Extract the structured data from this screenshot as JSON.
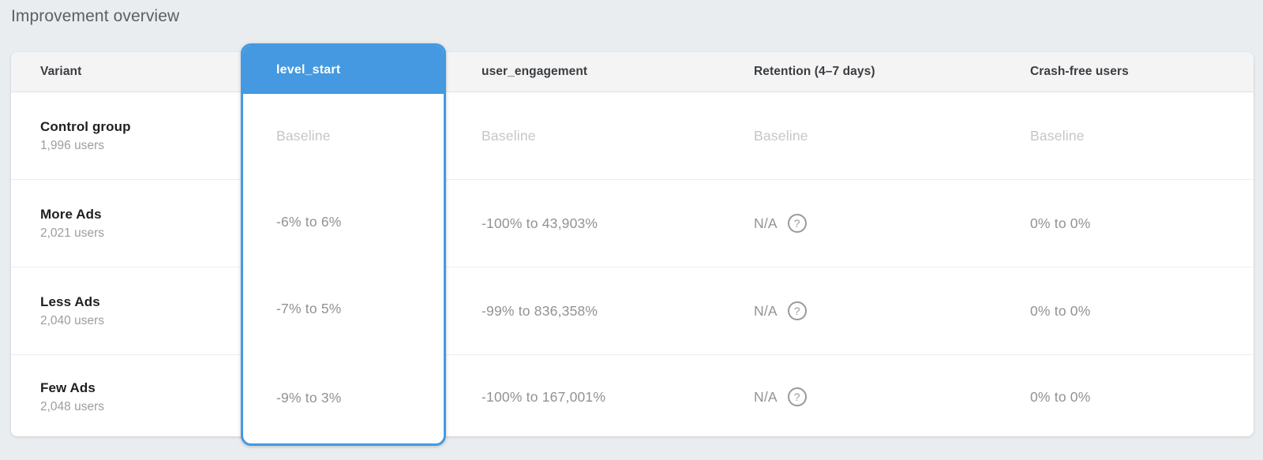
{
  "page": {
    "title": "Improvement overview",
    "background_color": "#e9edf0"
  },
  "table": {
    "accent_color": "#4499e0",
    "help_icon": "?",
    "columns": [
      {
        "key": "variant",
        "label": "Variant",
        "selected": false
      },
      {
        "key": "level_start",
        "label": "level_start",
        "selected": true
      },
      {
        "key": "user_engagement",
        "label": "user_engagement",
        "selected": false
      },
      {
        "key": "retention",
        "label": "Retention (4–7 days)",
        "selected": false
      },
      {
        "key": "crash_free",
        "label": "Crash-free users",
        "selected": false
      }
    ],
    "rows": [
      {
        "variant": "Control group",
        "users": "1,996 users",
        "level_start": "Baseline",
        "user_engagement": "Baseline",
        "retention": "Baseline",
        "crash_free": "Baseline",
        "is_baseline": true
      },
      {
        "variant": "More Ads",
        "users": "2,021 users",
        "level_start": "-6% to 6%",
        "user_engagement": "-100% to 43,903%",
        "retention": "N/A",
        "crash_free": "0% to 0%",
        "is_baseline": false
      },
      {
        "variant": "Less Ads",
        "users": "2,040 users",
        "level_start": "-7% to 5%",
        "user_engagement": "-99% to 836,358%",
        "retention": "N/A",
        "crash_free": "0% to 0%",
        "is_baseline": false
      },
      {
        "variant": "Few Ads",
        "users": "2,048 users",
        "level_start": "-9% to 3%",
        "user_engagement": "-100% to 167,001%",
        "retention": "N/A",
        "crash_free": "0% to 0%",
        "is_baseline": false
      }
    ]
  }
}
